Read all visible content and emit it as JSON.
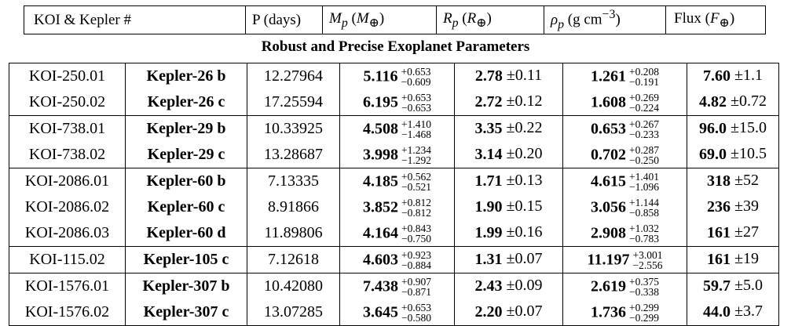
{
  "header": {
    "koi_kepler": "KOI & Kepler #",
    "period": "P (days)",
    "mass": "Mp (M⊕)",
    "radius": "Rp (R⊕)",
    "density": "ρp (g cm−3)",
    "flux": "Flux (F⊕)"
  },
  "caption": "Robust and Precise Exoplanet Parameters",
  "rows": [
    {
      "koi": "KOI-250.01",
      "kepler": "Kepler-26 b",
      "period": "12.27964",
      "mass": "5.116",
      "mass_up": "+0.653",
      "mass_lo": "−0.609",
      "radius": "2.78",
      "radius_err": "±0.11",
      "density": "1.261",
      "density_up": "+0.208",
      "density_lo": "−0.191",
      "flux": "7.60",
      "flux_err": "±1.1"
    },
    {
      "koi": "KOI-250.02",
      "kepler": "Kepler-26 c",
      "period": "17.25594",
      "mass": "6.195",
      "mass_up": "+0.653",
      "mass_lo": "−0.653",
      "radius": "2.72",
      "radius_err": "±0.12",
      "density": "1.608",
      "density_up": "+0.269",
      "density_lo": "−0.224",
      "flux": "4.82",
      "flux_err": "±0.72"
    },
    {
      "koi": "KOI-738.01",
      "kepler": "Kepler-29 b",
      "period": "10.33925",
      "mass": "4.508",
      "mass_up": "+1.410",
      "mass_lo": "−1.468",
      "radius": "3.35",
      "radius_err": "±0.22",
      "density": "0.653",
      "density_up": "+0.267",
      "density_lo": "−0.233",
      "flux": "96.0",
      "flux_err": "±15.0"
    },
    {
      "koi": "KOI-738.02",
      "kepler": "Kepler-29 c",
      "period": "13.28687",
      "mass": "3.998",
      "mass_up": "+1.234",
      "mass_lo": "−1.292",
      "radius": "3.14",
      "radius_err": "±0.20",
      "density": "0.702",
      "density_up": "+0.287",
      "density_lo": "−0.250",
      "flux": "69.0",
      "flux_err": "±10.5"
    },
    {
      "koi": "KOI-2086.01",
      "kepler": "Kepler-60 b",
      "period": "7.13335",
      "mass": "4.185",
      "mass_up": "+0.562",
      "mass_lo": "−0.521",
      "radius": "1.71",
      "radius_err": "±0.13",
      "density": "4.615",
      "density_up": "+1.401",
      "density_lo": "−1.096",
      "flux": "318",
      "flux_err": "±52"
    },
    {
      "koi": "KOI-2086.02",
      "kepler": "Kepler-60 c",
      "period": "8.91866",
      "mass": "3.852",
      "mass_up": "+0.812",
      "mass_lo": "−0.812",
      "radius": "1.90",
      "radius_err": "±0.15",
      "density": "3.056",
      "density_up": "+1.144",
      "density_lo": "−0.858",
      "flux": "236",
      "flux_err": "±39"
    },
    {
      "koi": "KOI-2086.03",
      "kepler": "Kepler-60 d",
      "period": "11.89806",
      "mass": "4.164",
      "mass_up": "+0.843",
      "mass_lo": "−0.750",
      "radius": "1.99",
      "radius_err": "±0.16",
      "density": "2.908",
      "density_up": "+1.032",
      "density_lo": "−0.783",
      "flux": "161",
      "flux_err": "±27"
    },
    {
      "koi": "KOI-115.02",
      "kepler": "Kepler-105 c",
      "period": "7.12618",
      "mass": "4.603",
      "mass_up": "+0.923",
      "mass_lo": "−0.884",
      "radius": "1.31",
      "radius_err": "±0.07",
      "density": "11.197",
      "density_up": "+3.001",
      "density_lo": "−2.556",
      "flux": "161",
      "flux_err": "±19"
    },
    {
      "koi": "KOI-1576.01",
      "kepler": "Kepler-307 b",
      "period": "10.42080",
      "mass": "7.438",
      "mass_up": "+0.907",
      "mass_lo": "−0.871",
      "radius": "2.43",
      "radius_err": "±0.09",
      "density": "2.619",
      "density_up": "+0.375",
      "density_lo": "−0.338",
      "flux": "59.7",
      "flux_err": "±5.0"
    },
    {
      "koi": "KOI-1576.02",
      "kepler": "Kepler-307 c",
      "period": "13.07285",
      "mass": "3.645",
      "mass_up": "+0.653",
      "mass_lo": "−0.580",
      "radius": "2.20",
      "radius_err": "±0.07",
      "density": "1.736",
      "density_up": "+0.299",
      "density_lo": "−0.299",
      "flux": "44.0",
      "flux_err": "±3.7"
    }
  ]
}
